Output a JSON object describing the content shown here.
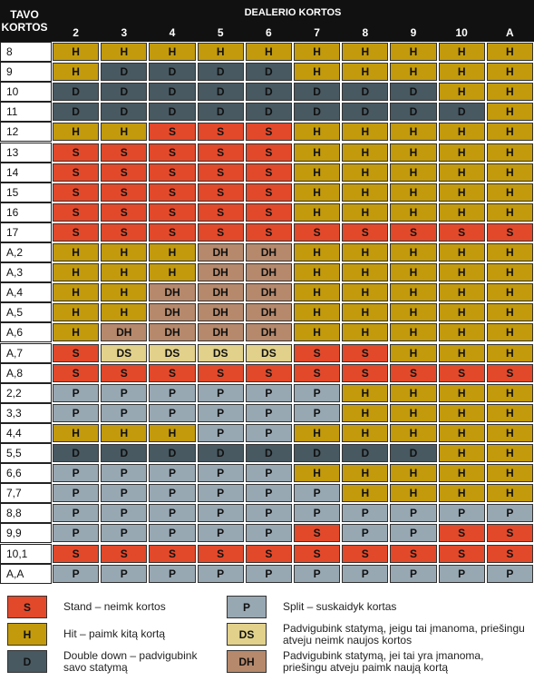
{
  "header": {
    "player_label": "TAVO KORTOS",
    "dealer_label": "DEALERIO KORTOS",
    "dealer_cards": [
      "2",
      "3",
      "4",
      "5",
      "6",
      "7",
      "8",
      "9",
      "10",
      "A"
    ]
  },
  "table": {
    "rows": [
      {
        "hand": "8",
        "cells": [
          "H",
          "H",
          "H",
          "H",
          "H",
          "H",
          "H",
          "H",
          "H",
          "H"
        ]
      },
      {
        "hand": "9",
        "cells": [
          "H",
          "D",
          "D",
          "D",
          "D",
          "H",
          "H",
          "H",
          "H",
          "H"
        ]
      },
      {
        "hand": "10",
        "cells": [
          "D",
          "D",
          "D",
          "D",
          "D",
          "D",
          "D",
          "D",
          "H",
          "H"
        ]
      },
      {
        "hand": "11",
        "cells": [
          "D",
          "D",
          "D",
          "D",
          "D",
          "D",
          "D",
          "D",
          "D",
          "H"
        ]
      },
      {
        "hand": "12",
        "cells": [
          "H",
          "H",
          "S",
          "S",
          "S",
          "H",
          "H",
          "H",
          "H",
          "H"
        ]
      },
      {
        "hand": "13",
        "cells": [
          "S",
          "S",
          "S",
          "S",
          "S",
          "H",
          "H",
          "H",
          "H",
          "H"
        ]
      },
      {
        "hand": "14",
        "cells": [
          "S",
          "S",
          "S",
          "S",
          "S",
          "H",
          "H",
          "H",
          "H",
          "H"
        ]
      },
      {
        "hand": "15",
        "cells": [
          "S",
          "S",
          "S",
          "S",
          "S",
          "H",
          "H",
          "H",
          "H",
          "H"
        ]
      },
      {
        "hand": "16",
        "cells": [
          "S",
          "S",
          "S",
          "S",
          "S",
          "H",
          "H",
          "H",
          "H",
          "H"
        ]
      },
      {
        "hand": "17",
        "cells": [
          "S",
          "S",
          "S",
          "S",
          "S",
          "S",
          "S",
          "S",
          "S",
          "S"
        ]
      },
      {
        "hand": "A,2",
        "cells": [
          "H",
          "H",
          "H",
          "DH",
          "DH",
          "H",
          "H",
          "H",
          "H",
          "H"
        ]
      },
      {
        "hand": "A,3",
        "cells": [
          "H",
          "H",
          "H",
          "DH",
          "DH",
          "H",
          "H",
          "H",
          "H",
          "H"
        ]
      },
      {
        "hand": "A,4",
        "cells": [
          "H",
          "H",
          "DH",
          "DH",
          "DH",
          "H",
          "H",
          "H",
          "H",
          "H"
        ]
      },
      {
        "hand": "A,5",
        "cells": [
          "H",
          "H",
          "DH",
          "DH",
          "DH",
          "H",
          "H",
          "H",
          "H",
          "H"
        ]
      },
      {
        "hand": "A,6",
        "cells": [
          "H",
          "DH",
          "DH",
          "DH",
          "DH",
          "H",
          "H",
          "H",
          "H",
          "H"
        ]
      },
      {
        "hand": "A,7",
        "cells": [
          "S",
          "DS",
          "DS",
          "DS",
          "DS",
          "S",
          "S",
          "H",
          "H",
          "H"
        ]
      },
      {
        "hand": "A,8",
        "cells": [
          "S",
          "S",
          "S",
          "S",
          "S",
          "S",
          "S",
          "S",
          "S",
          "S"
        ]
      },
      {
        "hand": "2,2",
        "cells": [
          "P",
          "P",
          "P",
          "P",
          "P",
          "P",
          "H",
          "H",
          "H",
          "H"
        ]
      },
      {
        "hand": "3,3",
        "cells": [
          "P",
          "P",
          "P",
          "P",
          "P",
          "P",
          "H",
          "H",
          "H",
          "H"
        ]
      },
      {
        "hand": "4,4",
        "cells": [
          "H",
          "H",
          "H",
          "P",
          "P",
          "H",
          "H",
          "H",
          "H",
          "H"
        ]
      },
      {
        "hand": "5,5",
        "cells": [
          "D",
          "D",
          "D",
          "D",
          "D",
          "D",
          "D",
          "D",
          "H",
          "H"
        ]
      },
      {
        "hand": "6,6",
        "cells": [
          "P",
          "P",
          "P",
          "P",
          "P",
          "H",
          "H",
          "H",
          "H",
          "H"
        ]
      },
      {
        "hand": "7,7",
        "cells": [
          "P",
          "P",
          "P",
          "P",
          "P",
          "P",
          "H",
          "H",
          "H",
          "H"
        ]
      },
      {
        "hand": "8,8",
        "cells": [
          "P",
          "P",
          "P",
          "P",
          "P",
          "P",
          "P",
          "P",
          "P",
          "P"
        ]
      },
      {
        "hand": "9,9",
        "cells": [
          "P",
          "P",
          "P",
          "P",
          "P",
          "S",
          "P",
          "P",
          "S",
          "S"
        ]
      },
      {
        "hand": "10,1",
        "cells": [
          "S",
          "S",
          "S",
          "S",
          "S",
          "S",
          "S",
          "S",
          "S",
          "S"
        ]
      },
      {
        "hand": "A,A",
        "cells": [
          "P",
          "P",
          "P",
          "P",
          "P",
          "P",
          "P",
          "P",
          "P",
          "P"
        ]
      }
    ]
  },
  "legend": [
    {
      "code": "S",
      "color": "#e2492b",
      "text": "Stand – neimk kortos"
    },
    {
      "code": "H",
      "color": "#c29a0c",
      "text": "Hit – paimk kitą kortą"
    },
    {
      "code": "D",
      "color": "#485961",
      "text": "Double down – padvigubink savo statymą"
    },
    {
      "code": "P",
      "color": "#98a8b3",
      "text": "Split – suskaidyk kortas"
    },
    {
      "code": "DS",
      "color": "#e1d18b",
      "text": "Padvigubink statymą, jeigu tai įmanoma, priešingu atveju neimk naujos kortos"
    },
    {
      "code": "DH",
      "color": "#b6896c",
      "text": "Padvigubink statymą, jei tai yra įmanoma, priešingu atveju paimk naują kortą"
    }
  ]
}
